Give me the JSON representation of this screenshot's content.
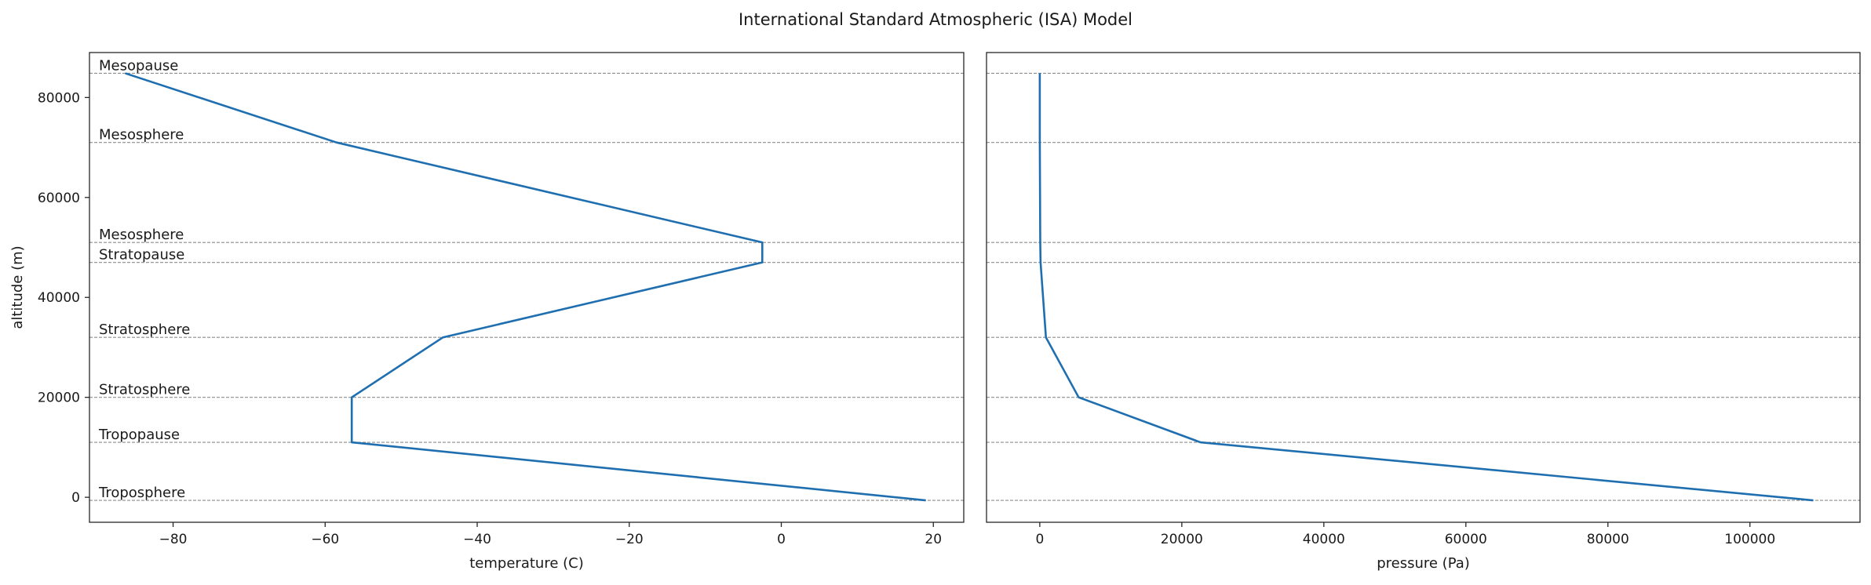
{
  "chart_data": {
    "title": "International Standard Atmospheric (ISA) Model",
    "layers": [
      {
        "name": "Troposphere",
        "altitude": -610
      },
      {
        "name": "Tropopause",
        "altitude": 11000
      },
      {
        "name": "Stratosphere",
        "altitude": 20000
      },
      {
        "name": "Stratosphere",
        "altitude": 32000
      },
      {
        "name": "Stratopause",
        "altitude": 47000
      },
      {
        "name": "Mesosphere",
        "altitude": 51000
      },
      {
        "name": "Mesosphere",
        "altitude": 71000
      },
      {
        "name": "Mesopause",
        "altitude": 84852
      }
    ],
    "charts": [
      {
        "type": "line",
        "xlabel": "temperature (C)",
        "ylabel": "altitude (m)",
        "xlim": [
          -91,
          24
        ],
        "ylim": [
          -5000,
          89000
        ],
        "xticks": [
          -80,
          -60,
          -40,
          -20,
          0,
          20
        ],
        "xtick_labels": [
          "−80",
          "−60",
          "−40",
          "−20",
          "0",
          "20"
        ],
        "yticks": [
          0,
          20000,
          40000,
          60000,
          80000
        ],
        "ytick_labels": [
          "0",
          "20000",
          "40000",
          "60000",
          "80000"
        ],
        "x": [
          19,
          -56.5,
          -56.5,
          -44.5,
          -2.5,
          -2.5,
          -58.5,
          -86.3
        ],
        "y": [
          -610,
          11000,
          20000,
          32000,
          47000,
          51000,
          71000,
          84852
        ],
        "show_layer_labels": true
      },
      {
        "type": "line",
        "xlabel": "pressure (Pa)",
        "ylabel": "",
        "xlim": [
          -7500,
          115500
        ],
        "ylim": [
          -5000,
          89000
        ],
        "xticks": [
          0,
          20000,
          40000,
          60000,
          80000,
          100000
        ],
        "xtick_labels": [
          "0",
          "20000",
          "40000",
          "60000",
          "80000",
          "100000"
        ],
        "yticks": [],
        "ytick_labels": [],
        "x": [
          108900,
          22632,
          5475,
          868,
          111,
          67,
          4,
          0.4
        ],
        "y": [
          -610,
          11000,
          20000,
          32000,
          47000,
          51000,
          71000,
          84852
        ],
        "show_layer_labels": false
      }
    ],
    "colors": {
      "line": "#1f6fb0",
      "reference": "#8c8c8c",
      "axes": "#262626"
    }
  }
}
